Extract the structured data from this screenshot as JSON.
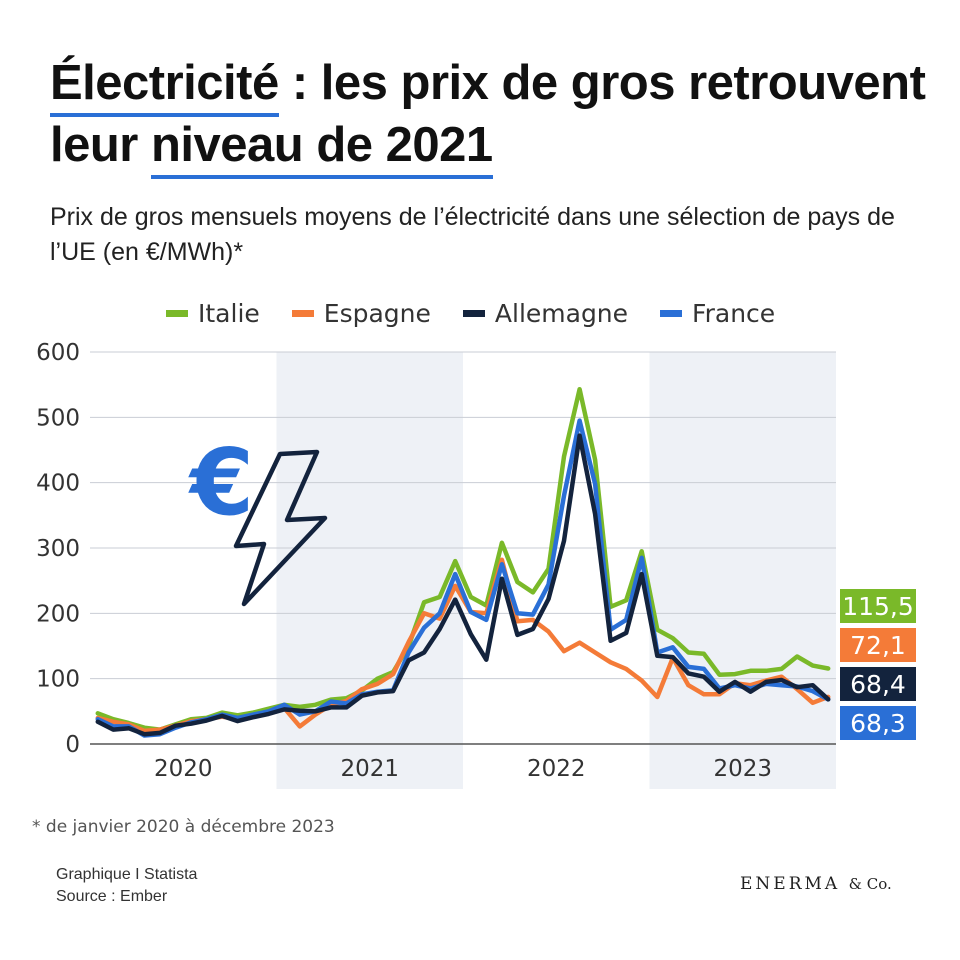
{
  "title": {
    "part1": "Électricité",
    "part2": " : les prix de gros retrouvent leur ",
    "part3": "niveau de 2021"
  },
  "subtitle": "Prix de gros mensuels moyens de l’électricité dans une sélection de pays de l’UE (en €/MWh)*",
  "footnote": "* de janvier 2020 à décembre 2023",
  "credit": {
    "line1": "Graphique I Statista",
    "line2": "Source : Ember"
  },
  "brand": {
    "name": "ENERMA",
    "suffix": "& Co."
  },
  "chart_data": {
    "type": "line",
    "title": "Électricité : les prix de gros retrouvent leur niveau de 2021",
    "ylabel": "€/MWh",
    "xlabel": "",
    "ylim": [
      0,
      600
    ],
    "yticks": [
      0,
      100,
      200,
      300,
      400,
      500,
      600
    ],
    "year_labels": [
      "2020",
      "2021",
      "2022",
      "2023"
    ],
    "grid": true,
    "legend_position": "top",
    "series": [
      {
        "name": "Italie",
        "color": "#7ab929",
        "last_label": "115,5",
        "values": [
          47,
          38,
          32,
          25,
          22,
          30,
          38,
          40,
          48,
          44,
          48,
          54,
          60,
          57,
          60,
          68,
          70,
          82,
          100,
          110,
          150,
          217,
          225,
          280,
          225,
          212,
          308,
          248,
          232,
          268,
          440,
          543,
          435,
          210,
          220,
          295,
          175,
          162,
          140,
          138,
          106,
          107,
          112,
          112,
          115,
          134,
          120,
          115.5
        ]
      },
      {
        "name": "Espagne",
        "color": "#f47b38",
        "last_label": "72,1",
        "values": [
          40,
          34,
          30,
          20,
          22,
          28,
          35,
          38,
          42,
          38,
          42,
          48,
          55,
          27,
          45,
          60,
          66,
          84,
          92,
          107,
          156,
          200,
          192,
          242,
          202,
          200,
          282,
          188,
          190,
          172,
          142,
          155,
          140,
          125,
          115,
          97,
          72,
          132,
          90,
          76,
          76,
          93,
          90,
          97,
          103,
          84,
          63,
          72.1
        ]
      },
      {
        "name": "Allemagne",
        "color": "#13233d",
        "last_label": "68,4",
        "values": [
          34,
          22,
          24,
          15,
          17,
          28,
          31,
          36,
          43,
          35,
          41,
          46,
          53,
          51,
          50,
          56,
          56,
          74,
          79,
          81,
          128,
          140,
          176,
          221,
          168,
          129,
          253,
          167,
          176,
          222,
          311,
          472,
          352,
          158,
          170,
          260,
          135,
          133,
          108,
          103,
          80,
          95,
          80,
          95,
          98,
          87,
          90,
          68.4
        ]
      },
      {
        "name": "France",
        "color": "#2a6fd6",
        "last_label": "68,3",
        "values": [
          38,
          27,
          27,
          13,
          15,
          25,
          33,
          38,
          45,
          40,
          45,
          50,
          60,
          45,
          50,
          65,
          62,
          76,
          80,
          82,
          140,
          178,
          200,
          260,
          202,
          190,
          275,
          200,
          198,
          244,
          380,
          495,
          398,
          175,
          190,
          285,
          140,
          148,
          118,
          115,
          85,
          90,
          85,
          92,
          90,
          88,
          81,
          68.3
        ]
      }
    ]
  },
  "colors": {
    "accent": "#2a6fd6",
    "band": "#eef1f6"
  }
}
